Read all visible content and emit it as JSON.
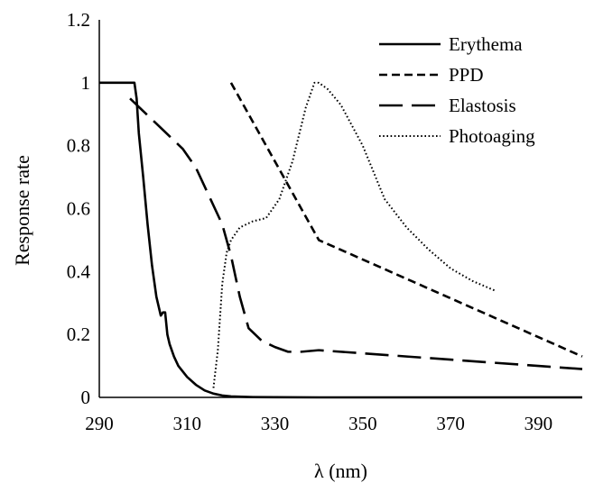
{
  "chart_data": {
    "type": "line",
    "title": "",
    "xlabel": "λ (nm)",
    "ylabel": "Response rate",
    "xlim": [
      290,
      400
    ],
    "ylim": [
      0,
      1.2
    ],
    "xticks": [
      290,
      310,
      330,
      350,
      370,
      390
    ],
    "yticks": [
      0,
      0.2,
      0.4,
      0.6,
      0.8,
      1,
      1.2
    ],
    "ytick_labels": [
      "0",
      "0.2",
      "0.4",
      "0.6",
      "0.8",
      "1",
      "1.2"
    ],
    "grid": false,
    "legend_position": "top-right",
    "series": [
      {
        "name": "Erythema",
        "style": "solid",
        "color": "#000000",
        "x": [
          290,
          296,
          297,
          298,
          298.5,
          299,
          300,
          301,
          302,
          303,
          304,
          304.5,
          305,
          305.5,
          306,
          307,
          308,
          310,
          312,
          314,
          316,
          318,
          320,
          325,
          330,
          340,
          350,
          400
        ],
        "y": [
          1.0,
          1.0,
          1.0,
          1.0,
          0.95,
          0.84,
          0.7,
          0.55,
          0.42,
          0.32,
          0.26,
          0.27,
          0.27,
          0.2,
          0.17,
          0.13,
          0.1,
          0.065,
          0.04,
          0.022,
          0.012,
          0.006,
          0.003,
          0.001,
          0.0005,
          0.0,
          0.0,
          0.0
        ]
      },
      {
        "name": "PPD",
        "style": "short-dash",
        "color": "#000000",
        "x": [
          320,
          340,
          400
        ],
        "y": [
          1.0,
          0.5,
          0.13
        ]
      },
      {
        "name": "Elastosis",
        "style": "long-dash",
        "color": "#000000",
        "x": [
          297,
          300,
          303,
          306,
          309,
          312,
          315,
          318,
          320,
          322,
          324,
          327,
          330,
          333,
          336,
          340,
          350,
          360,
          370,
          380,
          390,
          400
        ],
        "y": [
          0.95,
          0.91,
          0.87,
          0.83,
          0.79,
          0.73,
          0.64,
          0.55,
          0.45,
          0.32,
          0.22,
          0.18,
          0.16,
          0.145,
          0.145,
          0.15,
          0.14,
          0.13,
          0.12,
          0.11,
          0.1,
          0.09
        ]
      },
      {
        "name": "Photoaging",
        "style": "dotted",
        "color": "#000000",
        "x": [
          316,
          317,
          318,
          319,
          320,
          322,
          325,
          328,
          331,
          334,
          337,
          339,
          340,
          342,
          345,
          350,
          355,
          360,
          365,
          370,
          375,
          380
        ],
        "y": [
          0.03,
          0.15,
          0.36,
          0.46,
          0.5,
          0.54,
          0.56,
          0.57,
          0.63,
          0.75,
          0.92,
          1.0,
          1.0,
          0.98,
          0.93,
          0.8,
          0.63,
          0.54,
          0.47,
          0.41,
          0.37,
          0.34
        ]
      }
    ]
  }
}
